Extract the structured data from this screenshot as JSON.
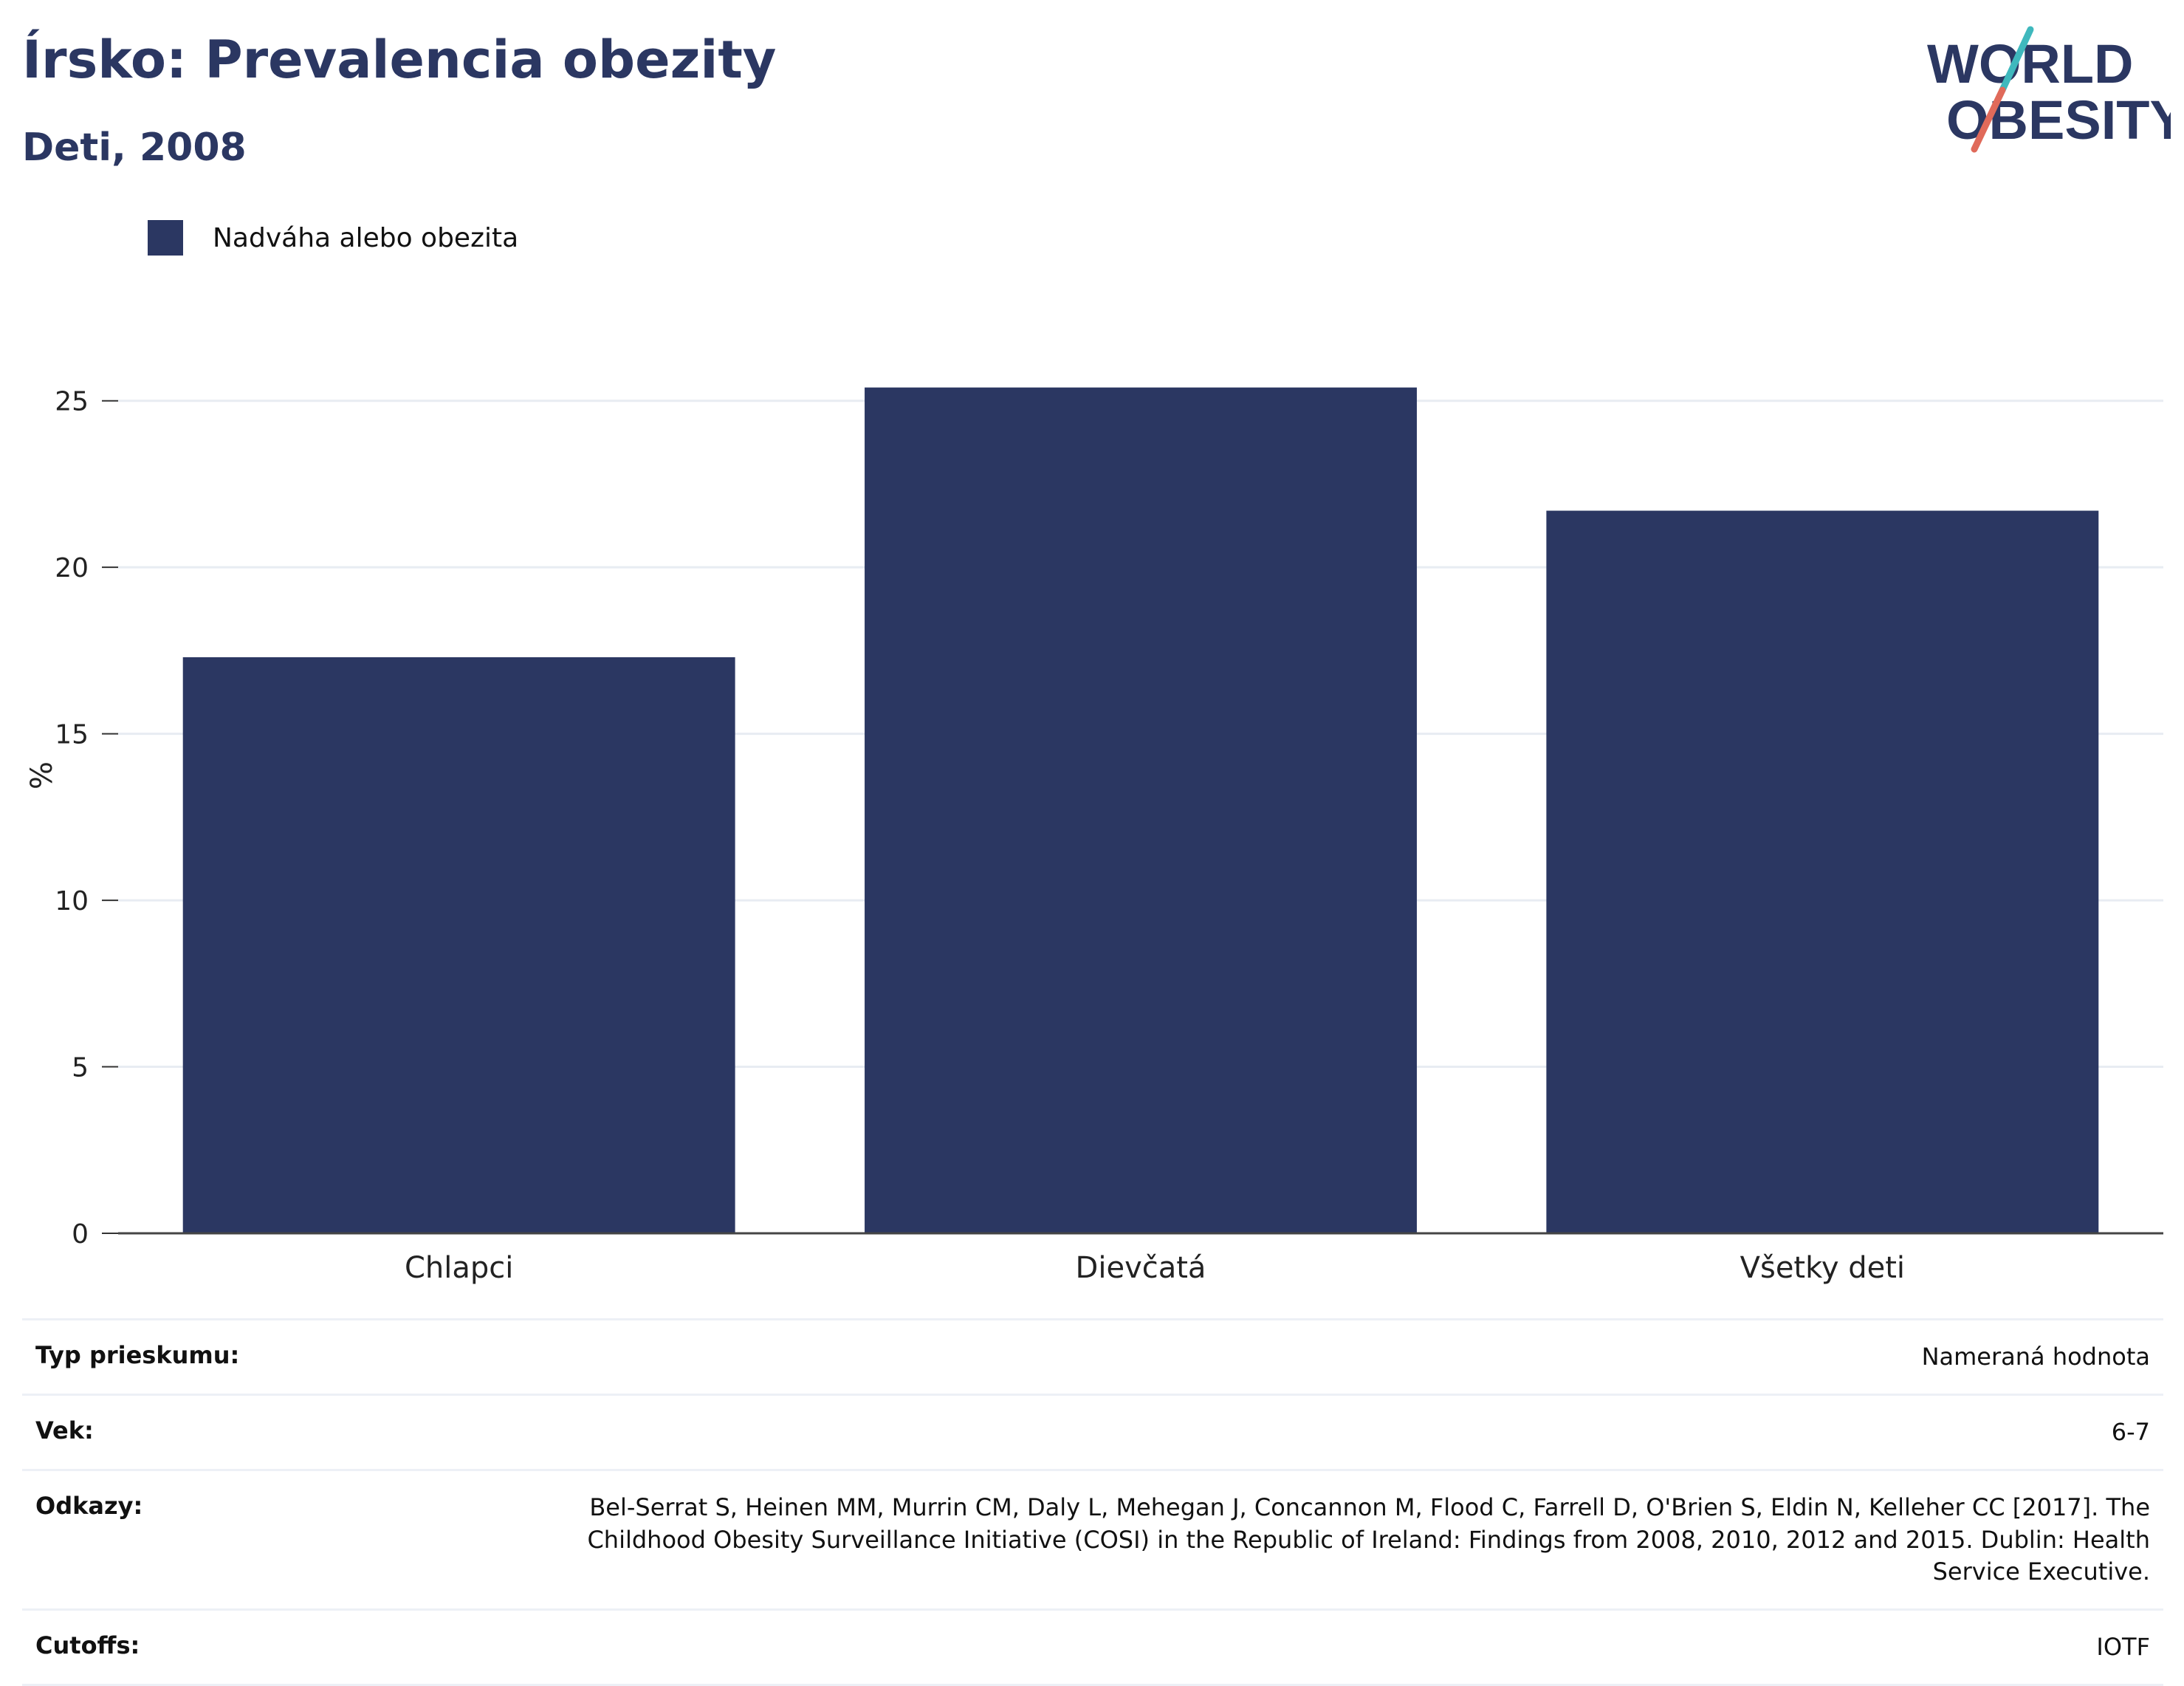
{
  "header": {
    "title": "Írsko: Prevalencia obezity",
    "subtitle": "Deti, 2008",
    "logo_line1": "WORLD",
    "logo_line2": "OBESITY"
  },
  "legend": {
    "label": "Nadváha alebo obezita",
    "color": "#2b3762"
  },
  "chart_data": {
    "type": "bar",
    "categories": [
      "Chlapci",
      "Dievčatá",
      "Všetky deti"
    ],
    "series": [
      {
        "name": "Nadváha alebo obezita",
        "values": [
          17.3,
          25.4,
          21.7
        ],
        "color": "#2b3762"
      }
    ],
    "ylabel": "%",
    "xlabel": "",
    "ylim": [
      0,
      27.5
    ],
    "yticks": [
      0,
      5,
      10,
      15,
      20,
      25
    ],
    "grid": true,
    "legend_position": "top-left"
  },
  "info": [
    {
      "key": "Typ prieskumu:",
      "value": "Nameraná hodnota"
    },
    {
      "key": "Vek:",
      "value": "6-7"
    },
    {
      "key": "Odkazy:",
      "value": "Bel-Serrat S, Heinen MM, Murrin CM, Daly L, Mehegan J, Concannon M, Flood C, Farrell D, O'Brien S, Eldin N, Kelleher CC [2017]. The Childhood Obesity Surveillance Initiative (COSI) in the Republic of Ireland: Findings from 2008, 2010, 2012 and 2015. Dublin: Health Service Executive."
    },
    {
      "key": "Cutoffs:",
      "value": "IOTF"
    }
  ]
}
